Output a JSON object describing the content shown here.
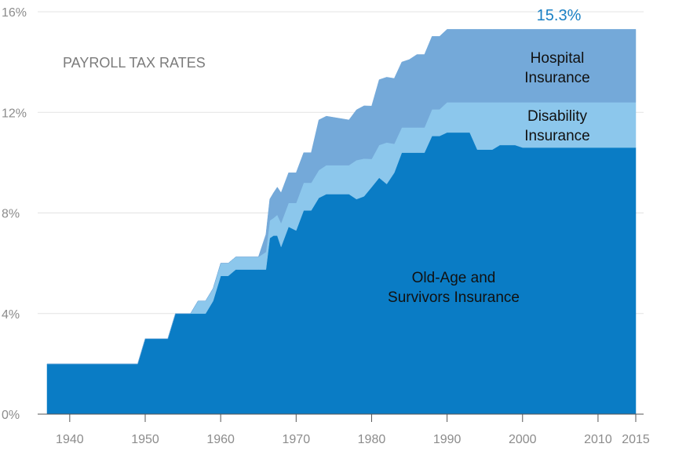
{
  "chart_data": {
    "type": "area",
    "stacked": true,
    "title": "PAYROLL TAX RATES",
    "xlabel": "",
    "ylabel": "",
    "xlim": [
      1936,
      2016
    ],
    "ylim": [
      0,
      16
    ],
    "x_ticks": [
      1940,
      1950,
      1960,
      1970,
      1980,
      1990,
      2000,
      2010,
      2015
    ],
    "y_ticks": [
      0,
      4,
      8,
      12,
      16
    ],
    "y_tick_labels": [
      "0%",
      "4%",
      "8%",
      "12%",
      "16%"
    ],
    "grid": "horizontal",
    "annotation": {
      "text": "15.3%",
      "x": 1993,
      "y": 15.3,
      "color": "#1a80c4"
    },
    "series": [
      {
        "name": "Old-Age and Survivors Insurance",
        "label_lines": [
          "Old-Age and",
          "Survivors Insurance"
        ],
        "label_at": [
          1998,
          5.2
        ],
        "color": "#0a7cc5",
        "points": [
          [
            1937,
            2.0
          ],
          [
            1949,
            2.0
          ],
          [
            1950,
            3.0
          ],
          [
            1953,
            3.0
          ],
          [
            1954,
            4.0
          ],
          [
            1958,
            4.0
          ],
          [
            1959,
            4.5
          ],
          [
            1960,
            5.5
          ],
          [
            1961,
            5.5
          ],
          [
            1962,
            5.75
          ],
          [
            1966,
            5.75
          ],
          [
            1966.5,
            7.0
          ],
          [
            1967,
            7.1
          ],
          [
            1967.5,
            7.1
          ],
          [
            1968,
            6.65
          ],
          [
            1969,
            7.45
          ],
          [
            1970,
            7.3
          ],
          [
            1971,
            8.1
          ],
          [
            1972,
            8.1
          ],
          [
            1973,
            8.6
          ],
          [
            1974,
            8.75
          ],
          [
            1977,
            8.75
          ],
          [
            1978,
            8.55
          ],
          [
            1979,
            8.66
          ],
          [
            1981,
            9.4
          ],
          [
            1982,
            9.15
          ],
          [
            1983,
            9.6
          ],
          [
            1984,
            10.4
          ],
          [
            1987,
            10.4
          ],
          [
            1988,
            11.06
          ],
          [
            1989,
            11.06
          ],
          [
            1990,
            11.2
          ],
          [
            1993,
            11.2
          ],
          [
            1994,
            10.52
          ],
          [
            1996,
            10.52
          ],
          [
            1997,
            10.7
          ],
          [
            1999,
            10.7
          ],
          [
            2000,
            10.6
          ],
          [
            2015,
            10.6
          ]
        ]
      },
      {
        "name": "Disability Insurance",
        "label_lines": [
          "Disability",
          "Insurance"
        ],
        "label_at": [
          2009,
          11.75
        ],
        "color": "#8cc7ec",
        "points": [
          [
            1937,
            0
          ],
          [
            1956,
            0
          ],
          [
            1957,
            0.5
          ],
          [
            1958,
            0.5
          ],
          [
            1959,
            0.5
          ],
          [
            1960,
            0.5
          ],
          [
            1965,
            0.5
          ],
          [
            1966,
            0.7
          ],
          [
            1967,
            0.7
          ],
          [
            1968,
            0.95
          ],
          [
            1969,
            0.95
          ],
          [
            1970,
            1.1
          ],
          [
            1971,
            1.1
          ],
          [
            1972,
            1.1
          ],
          [
            1973,
            1.1
          ],
          [
            1974,
            1.15
          ],
          [
            1977,
            1.15
          ],
          [
            1978,
            1.55
          ],
          [
            1979,
            1.5
          ],
          [
            1980,
            1.12
          ],
          [
            1981,
            1.3
          ],
          [
            1982,
            1.65
          ],
          [
            1983,
            1.15
          ],
          [
            1984,
            1.0
          ],
          [
            1987,
            1.0
          ],
          [
            1988,
            1.06
          ],
          [
            1989,
            1.06
          ],
          [
            1990,
            1.2
          ],
          [
            1993,
            1.2
          ],
          [
            1994,
            1.88
          ],
          [
            1996,
            1.88
          ],
          [
            1997,
            1.7
          ],
          [
            1999,
            1.7
          ],
          [
            2000,
            1.8
          ],
          [
            2015,
            1.8
          ]
        ]
      },
      {
        "name": "Hospital Insurance",
        "label_lines": [
          "Hospital",
          "Insurance"
        ],
        "label_at": [
          2009,
          14.1
        ],
        "color": "#74a9d9",
        "points": [
          [
            1937,
            0
          ],
          [
            1965,
            0
          ],
          [
            1966,
            0.7
          ],
          [
            1967,
            1.0
          ],
          [
            1968,
            1.2
          ],
          [
            1969,
            1.2
          ],
          [
            1970,
            1.2
          ],
          [
            1971,
            1.2
          ],
          [
            1972,
            1.2
          ],
          [
            1973,
            2.0
          ],
          [
            1977,
            1.8
          ],
          [
            1978,
            2.0
          ],
          [
            1979,
            2.1
          ],
          [
            1980,
            2.1
          ],
          [
            1981,
            2.6
          ],
          [
            1984,
            2.6
          ],
          [
            1985,
            2.7
          ],
          [
            1986,
            2.9
          ],
          [
            1987,
            2.9
          ],
          [
            1988,
            2.9
          ],
          [
            1990,
            2.9
          ],
          [
            2015,
            2.9
          ]
        ]
      }
    ]
  }
}
